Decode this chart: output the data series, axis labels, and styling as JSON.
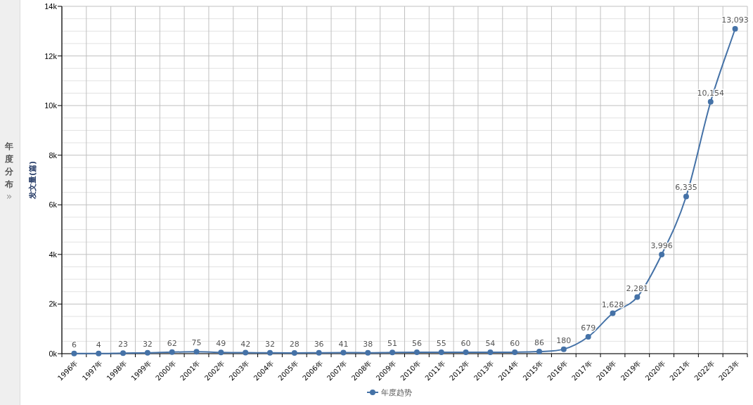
{
  "chart_data": {
    "type": "line",
    "ylabel": "发文量(篇)",
    "annotations": [
      "年度分布",
      "»"
    ],
    "categories": [
      "1996年",
      "1997年",
      "1998年",
      "1999年",
      "2000年",
      "2001年",
      "2002年",
      "2003年",
      "2004年",
      "2005年",
      "2006年",
      "2007年",
      "2008年",
      "2009年",
      "2010年",
      "2011年",
      "2012年",
      "2013年",
      "2014年",
      "2015年",
      "2016年",
      "2017年",
      "2018年",
      "2019年",
      "2020年",
      "2021年",
      "2022年",
      "2023年"
    ],
    "series": [
      {
        "name": "年度趋势",
        "color": "#4572a7",
        "values": [
          6,
          4,
          23,
          32,
          62,
          75,
          49,
          42,
          32,
          28,
          36,
          41,
          38,
          51,
          56,
          55,
          60,
          54,
          60,
          86,
          180,
          679,
          1628,
          2281,
          3996,
          6335,
          10154,
          13093
        ],
        "value_labels": [
          "6",
          "4",
          "23",
          "32",
          "62",
          "75",
          "49",
          "42",
          "32",
          "28",
          "36",
          "41",
          "38",
          "51",
          "56",
          "55",
          "60",
          "54",
          "60",
          "86",
          "180",
          "679",
          "1,628",
          "2,281",
          "3,996",
          "6,335",
          "10,154",
          "13,093"
        ]
      }
    ],
    "ylim": [
      0,
      14000
    ],
    "yticks": [
      {
        "value": 0,
        "label": "0k"
      },
      {
        "value": 2000,
        "label": "2k"
      },
      {
        "value": 4000,
        "label": "4k"
      },
      {
        "value": 6000,
        "label": "6k"
      },
      {
        "value": 8000,
        "label": "8k"
      },
      {
        "value": 10000,
        "label": "10k"
      },
      {
        "value": 12000,
        "label": "12k"
      },
      {
        "value": 14000,
        "label": "14k"
      }
    ],
    "grid": true,
    "legend": "bottom",
    "marker": "circle",
    "line_style": "solid"
  }
}
